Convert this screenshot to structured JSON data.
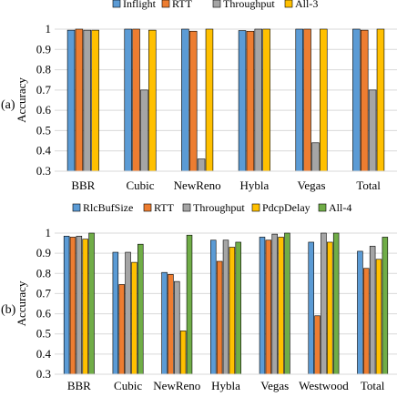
{
  "chart_data": [
    {
      "type": "bar",
      "panel_label": "(a)",
      "ylabel": "Accuracy",
      "ylim": [
        0.3,
        1
      ],
      "yticks": [
        0.3,
        0.4,
        0.5,
        0.6,
        0.7,
        0.8,
        0.9,
        1
      ],
      "ytick_labels": [
        "0.3",
        "0.4",
        "0.5",
        "0.6",
        "0.7",
        "0.8",
        "0.9",
        "1"
      ],
      "grid": true,
      "legend": "top",
      "categories": [
        "BBR",
        "Cubic",
        "NewReno",
        "Hybla",
        "Vegas",
        "Total"
      ],
      "series": [
        {
          "name": "Inflight",
          "color": "#5b9bd5",
          "values": [
            0.995,
            1.0,
            1.0,
            0.993,
            1.0,
            1.0
          ]
        },
        {
          "name": "RTT",
          "color": "#ed7d31",
          "values": [
            1.0,
            1.0,
            0.99,
            0.99,
            1.0,
            0.995
          ]
        },
        {
          "name": "Throughput",
          "color": "#a5a5a5",
          "values": [
            0.995,
            0.7,
            0.36,
            1.0,
            0.44,
            0.7
          ]
        },
        {
          "name": "All-3",
          "color": "#ffc000",
          "values": [
            0.995,
            0.995,
            1.0,
            1.0,
            1.0,
            1.0
          ]
        }
      ]
    },
    {
      "type": "bar",
      "panel_label": "(b)",
      "ylabel": "Accuracy",
      "ylim": [
        0.3,
        1
      ],
      "yticks": [
        0.3,
        0.4,
        0.5,
        0.6,
        0.7,
        0.8,
        0.9,
        1
      ],
      "ytick_labels": [
        "0.3",
        "0.4",
        "0.5",
        "0.6",
        "0.7",
        "0.8",
        "0.9",
        "1"
      ],
      "grid": true,
      "legend": "top",
      "categories": [
        "BBR",
        "Cubic",
        "NewReno",
        "Hybla",
        "Vegas",
        "Westwood",
        "Total"
      ],
      "series": [
        {
          "name": "RlcBufSize",
          "color": "#5b9bd5",
          "values": [
            0.985,
            0.905,
            0.805,
            0.965,
            0.98,
            0.955,
            0.91
          ]
        },
        {
          "name": "RTT",
          "color": "#ed7d31",
          "values": [
            0.98,
            0.745,
            0.795,
            0.86,
            0.965,
            0.59,
            0.825
          ]
        },
        {
          "name": "Throughput",
          "color": "#a5a5a5",
          "values": [
            0.985,
            0.905,
            0.76,
            0.965,
            0.995,
            1.0,
            0.935
          ]
        },
        {
          "name": "PdcpDelay",
          "color": "#ffc000",
          "values": [
            0.97,
            0.855,
            0.515,
            0.93,
            0.98,
            0.955,
            0.87
          ]
        },
        {
          "name": "All-4",
          "color": "#70ad47",
          "values": [
            1.0,
            0.945,
            0.99,
            0.955,
            1.0,
            1.0,
            0.98
          ]
        }
      ]
    }
  ]
}
